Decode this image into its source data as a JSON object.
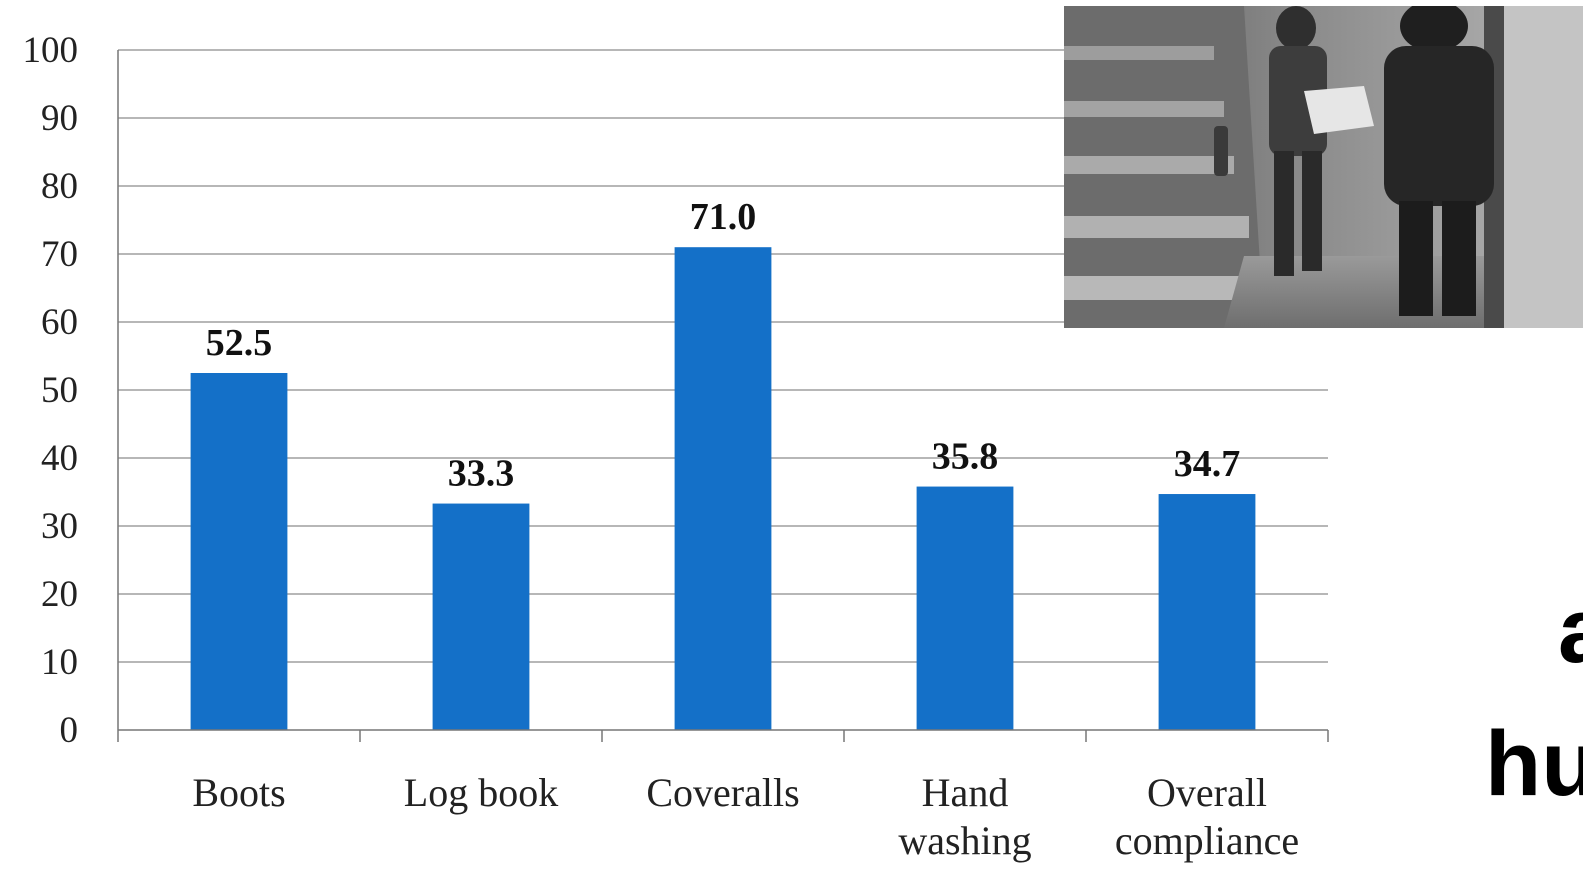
{
  "chart_data": {
    "type": "bar",
    "categories": [
      [
        "Boots"
      ],
      [
        "Log book"
      ],
      [
        "Coveralls"
      ],
      [
        "Hand",
        "washing"
      ],
      [
        "Overall",
        "compliance"
      ]
    ],
    "values": [
      52.5,
      33.3,
      71.0,
      35.8,
      34.7
    ],
    "value_labels": [
      "52.5",
      "33.3",
      "71.0",
      "35.8",
      "34.7"
    ],
    "ylim": [
      0,
      100
    ],
    "yticks": [
      0,
      10,
      20,
      30,
      40,
      50,
      60,
      70,
      80,
      90,
      100
    ],
    "grid": true,
    "bar_color": "#1470C8"
  },
  "photo": {
    "description_icon": "photo-icon"
  },
  "side_text": {
    "line1": "a",
    "line2": "hu"
  }
}
